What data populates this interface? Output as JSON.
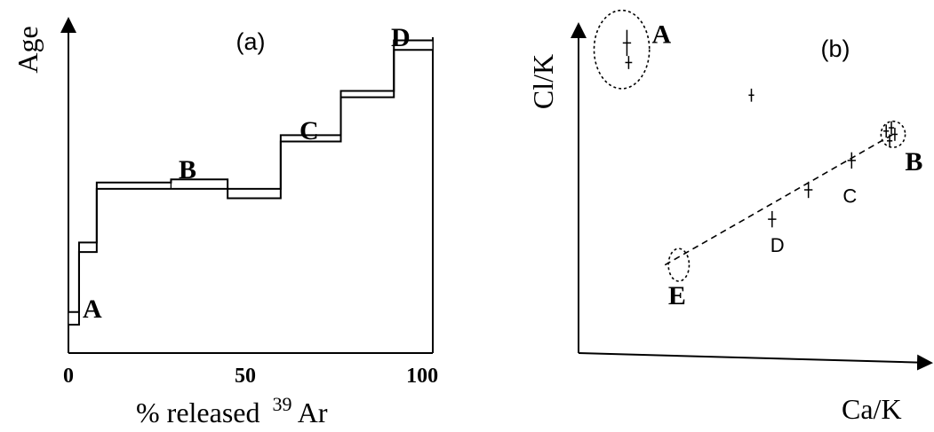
{
  "chart_data": [
    {
      "type": "line",
      "panel_label": "(a)",
      "ylabel": "Age",
      "xlabel": "% released",
      "xlabel_super": "39",
      "xlabel_suffix": "Ar",
      "xlim": [
        0,
        105
      ],
      "ylim": [
        0,
        100
      ],
      "x_ticks": [
        "0",
        "50",
        "100"
      ],
      "x_tick_values": [
        0,
        50,
        100
      ],
      "steps": [
        {
          "x0": 0,
          "x1": 3,
          "lo": 9,
          "hi": 13,
          "label": "A"
        },
        {
          "x0": 3,
          "x1": 8,
          "lo": 32,
          "hi": 35,
          "label": ""
        },
        {
          "x0": 8,
          "x1": 29,
          "lo": 52,
          "hi": 54,
          "label": ""
        },
        {
          "x0": 29,
          "x1": 45,
          "lo": 52,
          "hi": 55,
          "label": "B"
        },
        {
          "x0": 45,
          "x1": 60,
          "lo": 49,
          "hi": 52,
          "label": ""
        },
        {
          "x0": 60,
          "x1": 77,
          "lo": 67,
          "hi": 69,
          "label": "C"
        },
        {
          "x0": 77,
          "x1": 92,
          "lo": 81,
          "hi": 83,
          "label": ""
        },
        {
          "x0": 92,
          "x1": 103,
          "lo": 96,
          "hi": 99,
          "label": "D"
        }
      ],
      "step_labels": [
        "A",
        "B",
        "C",
        "D"
      ]
    },
    {
      "type": "scatter",
      "panel_label": "(b)",
      "ylabel": "Cl/K",
      "xlabel": "Ca/K",
      "xlim": [
        0,
        100
      ],
      "ylim": [
        0,
        100
      ],
      "points": [
        {
          "x": 14,
          "y": 95,
          "ex": 1.2,
          "ey": 4
        },
        {
          "x": 14.5,
          "y": 89,
          "ex": 1,
          "ey": 2
        },
        {
          "x": 50,
          "y": 79,
          "ex": 0.8,
          "ey": 2
        },
        {
          "x": 89,
          "y": 68,
          "ex": 0.8,
          "ey": 2
        },
        {
          "x": 90,
          "y": 65,
          "ex": 0.8,
          "ey": 2
        },
        {
          "x": 90.5,
          "y": 69,
          "ex": 0.8,
          "ey": 2
        },
        {
          "x": 91.5,
          "y": 67,
          "ex": 0.8,
          "ey": 2
        },
        {
          "x": 79,
          "y": 59,
          "ex": 1.2,
          "ey": 2.5
        },
        {
          "x": 66.5,
          "y": 50,
          "ex": 1.2,
          "ey": 2.5
        },
        {
          "x": 56,
          "y": 41,
          "ex": 1.2,
          "ey": 2.5
        }
      ],
      "trend_line": {
        "x": [
          25,
          91
        ],
        "y": [
          27,
          67
        ]
      },
      "ellipses": [
        {
          "cx": 12.5,
          "cy": 93,
          "rx": 8,
          "ry": 12
        },
        {
          "cx": 91,
          "cy": 67,
          "rx": 3.5,
          "ry": 4
        },
        {
          "cx": 29,
          "cy": 27,
          "rx": 3,
          "ry": 5
        }
      ],
      "group_labels": [
        {
          "text": "A",
          "x": 24,
          "y": 95,
          "style": "serif"
        },
        {
          "text": "B",
          "x": 97,
          "y": 56,
          "style": "serif"
        },
        {
          "text": "C",
          "x": 78.5,
          "y": 46,
          "style": "sans"
        },
        {
          "text": "D",
          "x": 57.5,
          "y": 31,
          "style": "sans"
        },
        {
          "text": "E",
          "x": 28.5,
          "y": 15,
          "style": "serif"
        }
      ]
    }
  ]
}
